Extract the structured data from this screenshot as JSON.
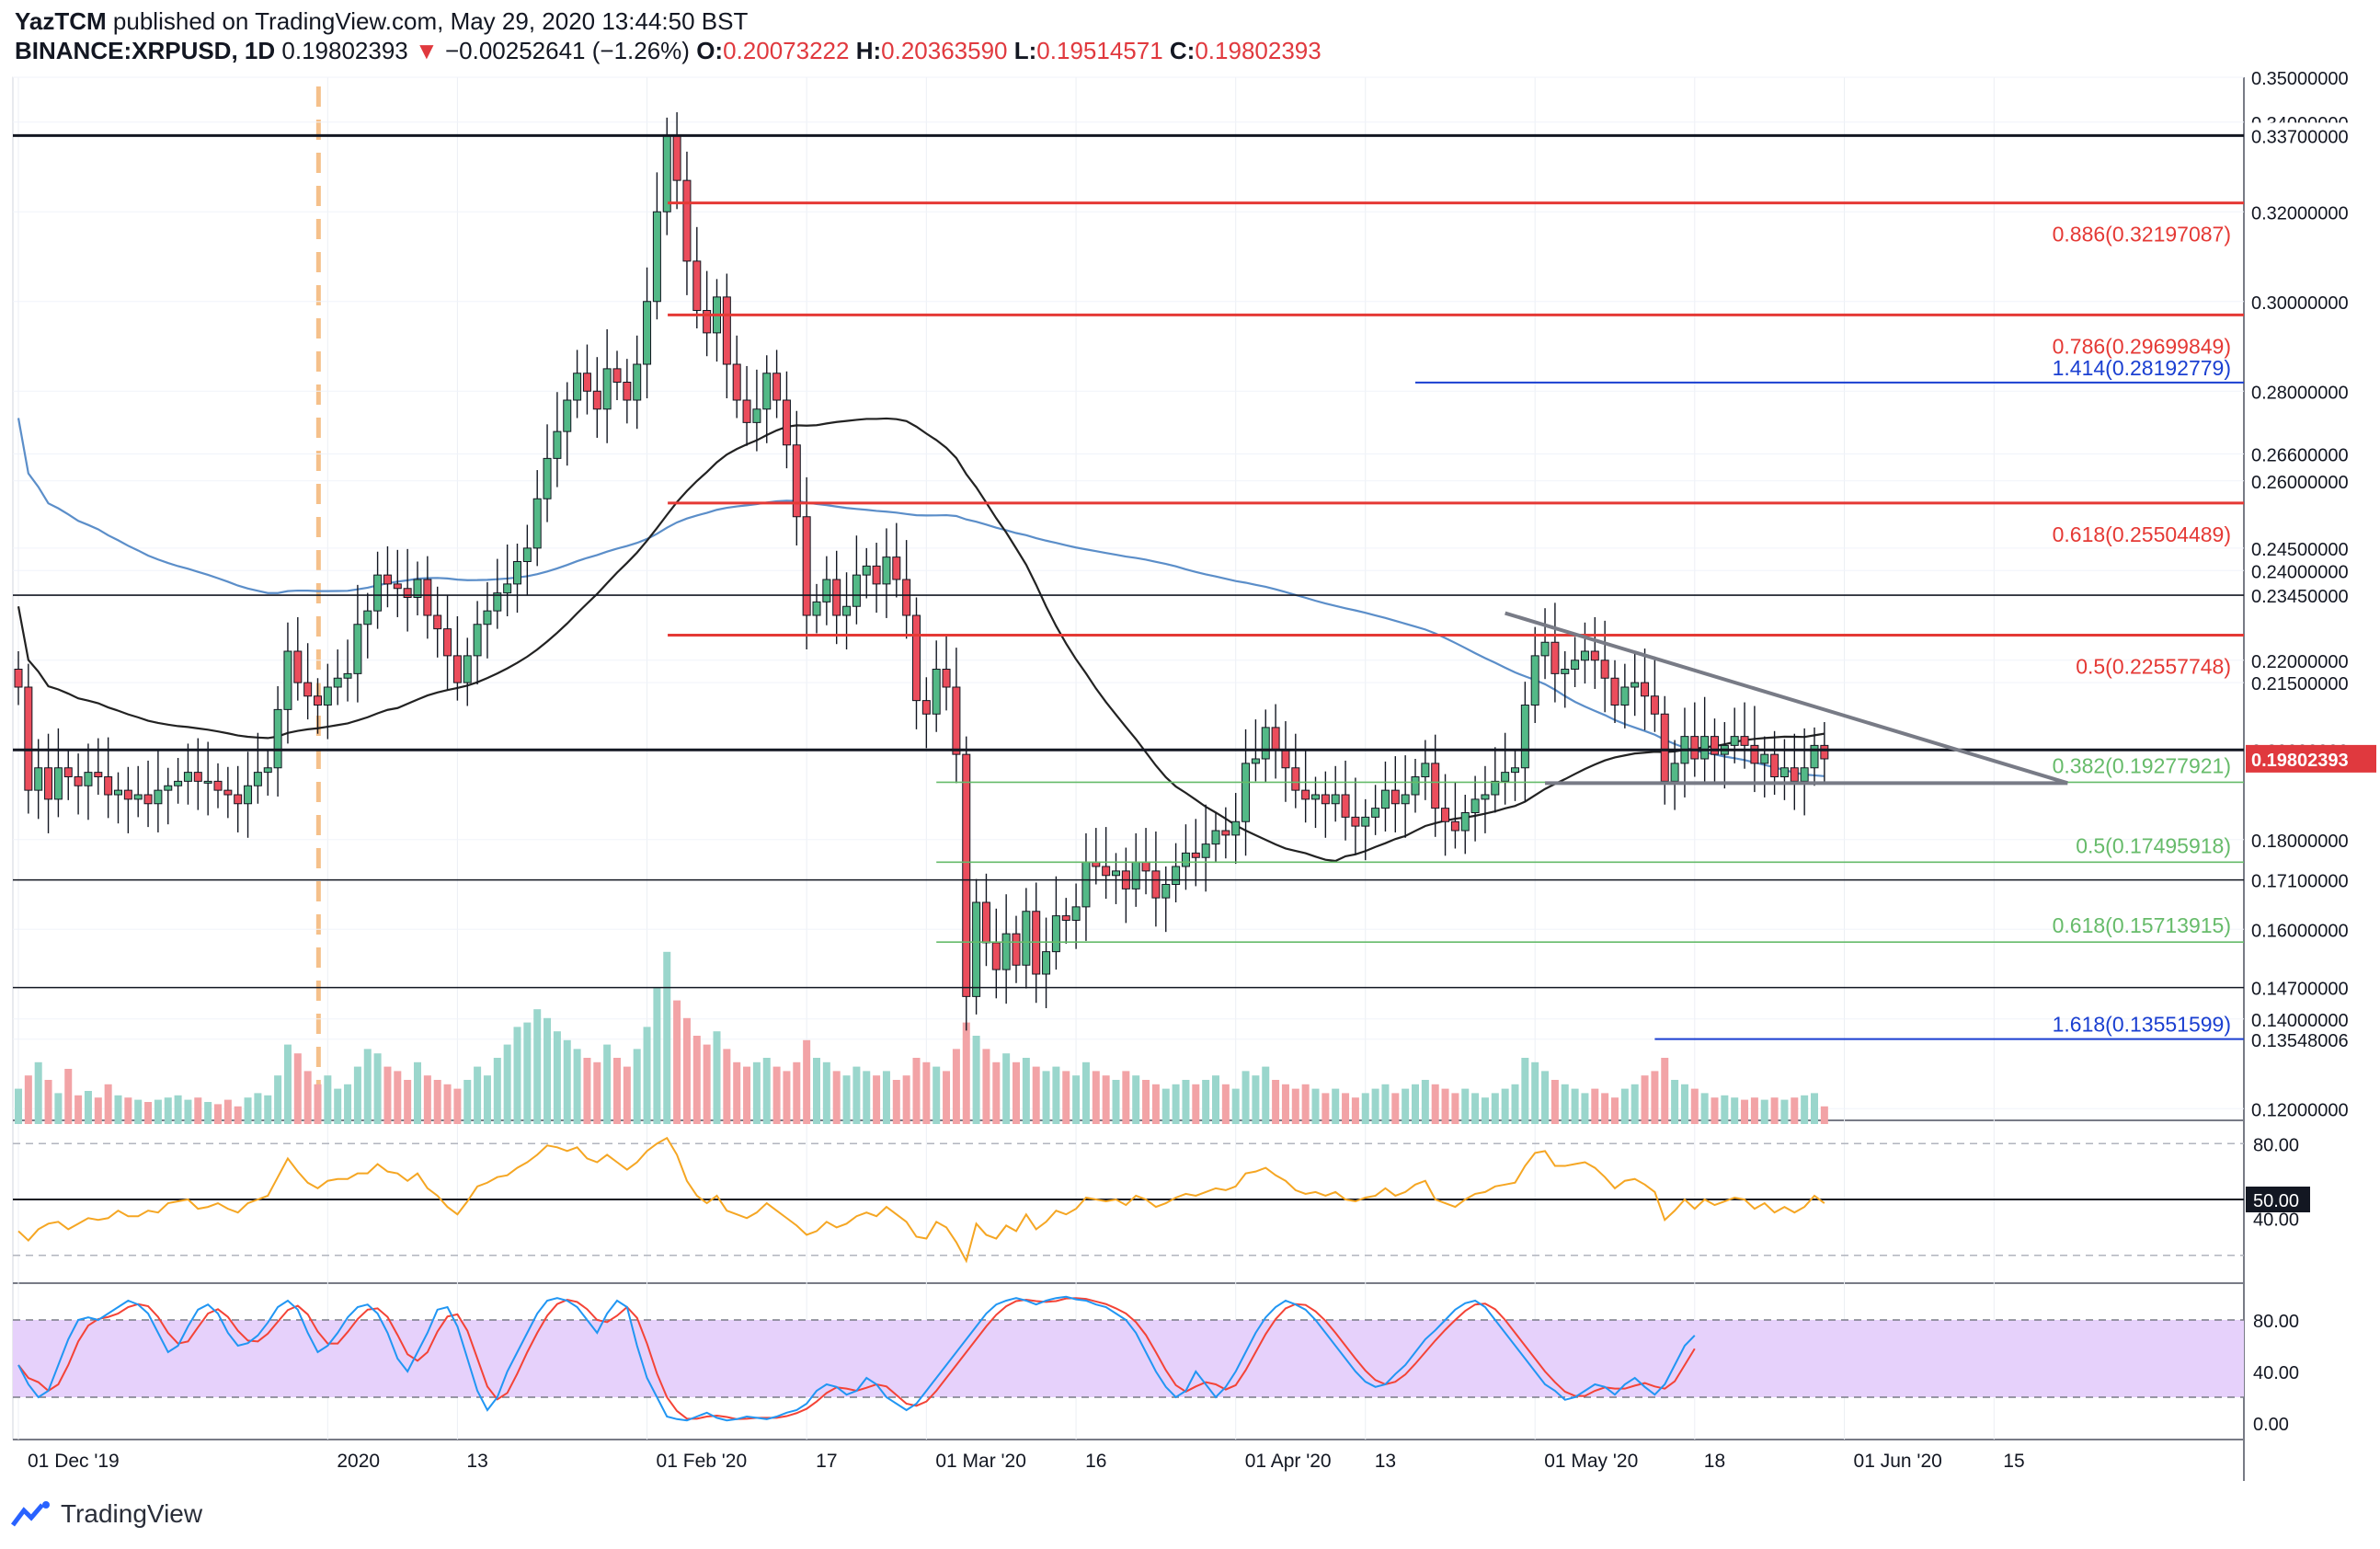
{
  "header": {
    "author": "YazTCM",
    "published": "published on TradingView.com, May 29, 2020 13:44:50 BST",
    "symbol": "BINANCE:XRPUSD, 1D",
    "last": "0.19802393",
    "change_arrow": "▼",
    "change": "−0.00252641 (−1.26%)",
    "o_label": "O:",
    "o": "0.20073222",
    "h_label": "H:",
    "h": "0.20363590",
    "l_label": "L:",
    "l": "0.19514571",
    "c_label": "C:",
    "c": "0.19802393"
  },
  "brand": "TradingView",
  "colors": {
    "up": "#53b987",
    "down": "#eb4d5c",
    "fib_upper": "#e53935",
    "fib_lower": "#66bb6a",
    "ext": "#1a3fd1",
    "ma200": "#5b8ec9",
    "ma100": "#222222",
    "rsi": "#f5a623",
    "stoch_k": "#2196f3",
    "stoch_d": "#f44336"
  },
  "chart_data": {
    "type": "candlestick",
    "timeframe": "1D",
    "ylim": [
      0.118,
      0.35
    ],
    "y_ticks": [
      "0.35000000",
      "0.34000000",
      "0.32000000",
      "0.30000000",
      "0.28000000",
      "0.26600000",
      "0.26000000",
      "0.24500000",
      "0.24000000",
      "0.22000000",
      "0.21500000",
      "0.18000000",
      "0.16000000",
      "0.14000000",
      "0.13548006",
      "0.12000000"
    ],
    "x_ticks": [
      "01 Dec '19",
      "2020",
      "13",
      "01 Feb '20",
      "17",
      "01 Mar '20",
      "16",
      "01 Apr '20",
      "13",
      "01 May '20",
      "18",
      "01 Jun '20",
      "15"
    ],
    "horizontal_levels": [
      {
        "value": 0.337,
        "label": "0.33700000",
        "kind": "support"
      },
      {
        "value": 0.2345,
        "label": "0.23450000",
        "kind": "support"
      },
      {
        "value": 0.2,
        "label": "0.20000000",
        "kind": "support"
      },
      {
        "value": 0.171,
        "label": "0.17100000",
        "kind": "support"
      },
      {
        "value": 0.147,
        "label": "0.14700000",
        "kind": "support"
      }
    ],
    "fib_upper": [
      {
        "ratio": "0.886",
        "value": 0.32197087,
        "label": "0.886(0.32197087)"
      },
      {
        "ratio": "0.786",
        "value": 0.29699849,
        "label": "0.786(0.29699849)"
      },
      {
        "ratio": "0.618",
        "value": 0.25504489,
        "label": "0.618(0.25504489)"
      },
      {
        "ratio": "0.5",
        "value": 0.22557748,
        "label": "0.5(0.22557748)"
      }
    ],
    "fib_lower": [
      {
        "ratio": "0.382",
        "value": 0.19277921,
        "label": "0.382(0.19277921)"
      },
      {
        "ratio": "0.5",
        "value": 0.17495918,
        "label": "0.5(0.17495918)"
      },
      {
        "ratio": "0.618",
        "value": 0.15713915,
        "label": "0.618(0.15713915)"
      }
    ],
    "extensions": [
      {
        "ratio": "1.414",
        "value": 0.28192779,
        "label": "1.414(0.28192779)"
      },
      {
        "ratio": "1.618",
        "value": 0.13551599,
        "label": "1.618(0.13551599)"
      }
    ],
    "current_price": {
      "value": 0.19802393,
      "label": "0.19802393"
    },
    "triangle": {
      "upper_start": [
        "2020-04-30",
        0.2305
      ],
      "upper_end": [
        "2020-06-04",
        0.1926
      ],
      "lower": 0.1926
    },
    "closes": [
      0.214,
      0.191,
      0.196,
      0.189,
      0.196,
      0.194,
      0.192,
      0.195,
      0.194,
      0.19,
      0.191,
      0.189,
      0.19,
      0.188,
      0.191,
      0.192,
      0.193,
      0.195,
      0.193,
      0.193,
      0.191,
      0.19,
      0.188,
      0.192,
      0.195,
      0.196,
      0.209,
      0.222,
      0.215,
      0.212,
      0.21,
      0.214,
      0.216,
      0.217,
      0.228,
      0.231,
      0.239,
      0.237,
      0.236,
      0.234,
      0.238,
      0.23,
      0.227,
      0.221,
      0.215,
      0.221,
      0.228,
      0.231,
      0.235,
      0.237,
      0.242,
      0.245,
      0.256,
      0.265,
      0.271,
      0.278,
      0.284,
      0.28,
      0.276,
      0.285,
      0.282,
      0.278,
      0.286,
      0.3,
      0.32,
      0.337,
      0.327,
      0.309,
      0.298,
      0.293,
      0.301,
      0.286,
      0.278,
      0.273,
      0.276,
      0.284,
      0.278,
      0.268,
      0.252,
      0.23,
      0.233,
      0.238,
      0.23,
      0.232,
      0.239,
      0.241,
      0.237,
      0.243,
      0.238,
      0.23,
      0.211,
      0.208,
      0.218,
      0.214,
      0.199,
      0.145,
      0.166,
      0.157,
      0.151,
      0.159,
      0.152,
      0.164,
      0.15,
      0.155,
      0.163,
      0.162,
      0.165,
      0.175,
      0.174,
      0.172,
      0.173,
      0.169,
      0.175,
      0.173,
      0.167,
      0.17,
      0.174,
      0.177,
      0.176,
      0.179,
      0.182,
      0.181,
      0.184,
      0.197,
      0.198,
      0.205,
      0.2,
      0.196,
      0.191,
      0.189,
      0.19,
      0.188,
      0.19,
      0.185,
      0.183,
      0.185,
      0.187,
      0.191,
      0.188,
      0.19,
      0.194,
      0.197,
      0.187,
      0.184,
      0.182,
      0.186,
      0.189,
      0.19,
      0.193,
      0.195,
      0.196,
      0.21,
      0.221,
      0.224,
      0.217,
      0.218,
      0.22,
      0.222,
      0.22,
      0.216,
      0.21,
      0.214,
      0.215,
      0.212,
      0.208,
      0.193,
      0.197,
      0.203,
      0.198,
      0.203,
      0.199,
      0.201,
      0.203,
      0.201,
      0.197,
      0.199,
      0.194,
      0.196,
      0.193,
      0.196,
      0.201,
      0.198
    ]
  },
  "rsi": {
    "levels": [
      "80.00",
      "50.00",
      "40.00"
    ],
    "values": [
      33,
      28,
      34,
      37,
      38,
      34,
      37,
      40,
      39,
      40,
      44,
      41,
      41,
      44,
      43,
      48,
      49,
      50,
      45,
      46,
      48,
      45,
      43,
      48,
      50,
      52,
      62,
      72,
      65,
      59,
      56,
      60,
      61,
      61,
      64,
      64,
      69,
      65,
      64,
      60,
      64,
      56,
      52,
      46,
      42,
      49,
      57,
      59,
      62,
      63,
      67,
      70,
      74,
      79,
      78,
      76,
      78,
      72,
      70,
      74,
      70,
      66,
      70,
      76,
      80,
      83,
      74,
      60,
      52,
      48,
      52,
      44,
      42,
      40,
      43,
      48,
      44,
      40,
      36,
      31,
      33,
      38,
      35,
      37,
      41,
      43,
      41,
      46,
      42,
      38,
      30,
      29,
      38,
      35,
      27,
      17,
      37,
      31,
      29,
      36,
      33,
      42,
      34,
      38,
      44,
      42,
      45,
      51,
      50,
      49,
      50,
      47,
      52,
      50,
      46,
      48,
      51,
      53,
      52,
      54,
      56,
      55,
      57,
      64,
      65,
      67,
      63,
      60,
      55,
      53,
      54,
      52,
      54,
      50,
      49,
      51,
      52,
      56,
      52,
      54,
      58,
      60,
      50,
      48,
      46,
      50,
      53,
      54,
      57,
      58,
      59,
      68,
      75,
      76,
      68,
      68,
      69,
      70,
      67,
      62,
      56,
      60,
      61,
      58,
      54,
      39,
      44,
      50,
      45,
      50,
      47,
      49,
      51,
      50,
      45,
      48,
      43,
      46,
      43,
      46,
      52,
      48
    ]
  },
  "stoch_rsi": {
    "levels": [
      "80.00",
      "40.00",
      "0.00"
    ],
    "k": [
      45,
      30,
      20,
      25,
      45,
      65,
      80,
      82,
      80,
      85,
      90,
      95,
      92,
      85,
      70,
      55,
      60,
      75,
      88,
      92,
      85,
      70,
      60,
      62,
      68,
      78,
      90,
      95,
      88,
      70,
      55,
      60,
      70,
      82,
      90,
      92,
      85,
      70,
      50,
      40,
      55,
      70,
      88,
      90,
      75,
      50,
      25,
      10,
      20,
      40,
      55,
      70,
      85,
      95,
      97,
      95,
      90,
      80,
      70,
      85,
      95,
      90,
      60,
      35,
      20,
      5,
      3,
      2,
      5,
      8,
      4,
      2,
      3,
      5,
      4,
      3,
      5,
      8,
      10,
      15,
      25,
      30,
      28,
      22,
      25,
      35,
      30,
      20,
      15,
      10,
      15,
      25,
      35,
      45,
      55,
      65,
      75,
      85,
      92,
      95,
      97,
      95,
      92,
      95,
      97,
      98,
      96,
      95,
      92,
      90,
      85,
      80,
      70,
      55,
      40,
      28,
      20,
      25,
      40,
      30,
      20,
      28,
      40,
      55,
      70,
      82,
      90,
      95,
      92,
      88,
      80,
      70,
      60,
      50,
      40,
      32,
      28,
      30,
      38,
      45,
      55,
      65,
      72,
      80,
      88,
      93,
      95,
      90,
      80,
      70,
      60,
      50,
      40,
      30,
      25,
      18,
      20,
      25,
      30,
      28,
      22,
      30,
      35,
      28,
      22,
      30,
      45,
      60,
      68
    ]
  },
  "volume": [
    0.16,
    0.22,
    0.28,
    0.2,
    0.14,
    0.25,
    0.13,
    0.15,
    0.12,
    0.18,
    0.13,
    0.12,
    0.11,
    0.1,
    0.11,
    0.12,
    0.13,
    0.11,
    0.12,
    0.1,
    0.09,
    0.11,
    0.08,
    0.12,
    0.14,
    0.13,
    0.22,
    0.36,
    0.32,
    0.24,
    0.18,
    0.22,
    0.16,
    0.18,
    0.26,
    0.34,
    0.32,
    0.26,
    0.24,
    0.2,
    0.28,
    0.22,
    0.2,
    0.18,
    0.16,
    0.2,
    0.26,
    0.22,
    0.3,
    0.36,
    0.44,
    0.46,
    0.52,
    0.48,
    0.42,
    0.38,
    0.34,
    0.3,
    0.28,
    0.36,
    0.3,
    0.26,
    0.34,
    0.44,
    0.62,
    0.78,
    0.56,
    0.48,
    0.4,
    0.36,
    0.42,
    0.34,
    0.28,
    0.26,
    0.28,
    0.3,
    0.26,
    0.24,
    0.28,
    0.38,
    0.3,
    0.28,
    0.24,
    0.22,
    0.26,
    0.24,
    0.22,
    0.24,
    0.2,
    0.22,
    0.3,
    0.28,
    0.26,
    0.24,
    0.34,
    0.46,
    0.4,
    0.34,
    0.28,
    0.32,
    0.28,
    0.3,
    0.26,
    0.24,
    0.26,
    0.24,
    0.22,
    0.28,
    0.24,
    0.22,
    0.2,
    0.24,
    0.22,
    0.2,
    0.18,
    0.16,
    0.18,
    0.2,
    0.18,
    0.2,
    0.22,
    0.18,
    0.16,
    0.24,
    0.22,
    0.26,
    0.2,
    0.18,
    0.16,
    0.18,
    0.16,
    0.14,
    0.16,
    0.14,
    0.12,
    0.14,
    0.16,
    0.18,
    0.14,
    0.16,
    0.18,
    0.2,
    0.18,
    0.16,
    0.14,
    0.16,
    0.14,
    0.12,
    0.14,
    0.16,
    0.18,
    0.3,
    0.28,
    0.24,
    0.2,
    0.18,
    0.16,
    0.14,
    0.16,
    0.14,
    0.12,
    0.16,
    0.18,
    0.22,
    0.24,
    0.3,
    0.2,
    0.18,
    0.16,
    0.14,
    0.12,
    0.13,
    0.12,
    0.11,
    0.12,
    0.11,
    0.12,
    0.11,
    0.12,
    0.13,
    0.14,
    0.08
  ]
}
